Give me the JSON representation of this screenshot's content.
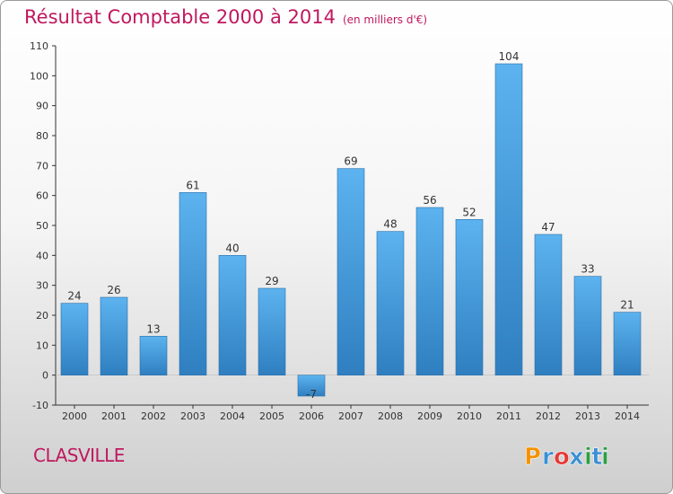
{
  "title": "Résultat Comptable 2000 à 2014",
  "subtitle": "(en milliers d'€)",
  "commune": "CLASVILLE",
  "logo": {
    "letters": [
      "P",
      "r",
      "o",
      "x",
      "i",
      "t",
      "i"
    ],
    "colors": [
      "#f39200",
      "#3a8fd4",
      "#e53935",
      "#3a8fd4",
      "#2e9e44",
      "#3a8fd4",
      "#2e9e44"
    ]
  },
  "colors": {
    "bar_top": "#5cb3ef",
    "bar_bottom": "#2f7fc0",
    "accent": "#c0185f"
  },
  "chart_data": {
    "type": "bar",
    "categories": [
      "2000",
      "2001",
      "2002",
      "2003",
      "2004",
      "2005",
      "2006",
      "2007",
      "2008",
      "2009",
      "2010",
      "2011",
      "2012",
      "2013",
      "2014"
    ],
    "values": [
      24,
      26,
      13,
      61,
      40,
      29,
      -7,
      69,
      48,
      56,
      52,
      104,
      47,
      33,
      21
    ],
    "title": "Résultat Comptable 2000 à 2014",
    "ylim": [
      -10,
      110
    ],
    "yticks": [
      -10,
      0,
      10,
      20,
      30,
      40,
      50,
      60,
      70,
      80,
      90,
      100,
      110
    ],
    "grid": false
  }
}
